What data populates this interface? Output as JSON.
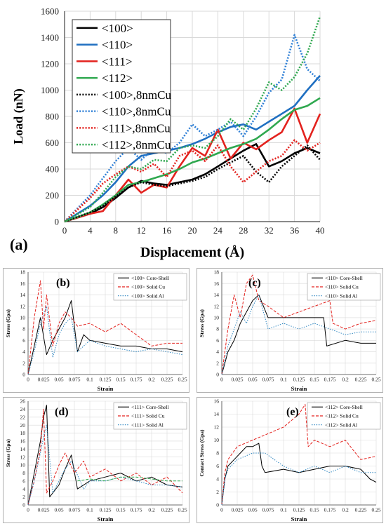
{
  "chart_data": [
    {
      "type": "line",
      "panel_label": "(a)",
      "xlabel": "Displacement (Å)",
      "ylabel": "Load (nN)",
      "xlim": [
        0,
        40
      ],
      "ylim": [
        0,
        1600
      ],
      "xticks": [
        "0",
        "4",
        "8",
        "12",
        "16",
        "20",
        "24",
        "28",
        "32",
        "36",
        "40"
      ],
      "yticks": [
        "0",
        "200",
        "400",
        "600",
        "800",
        "1000",
        "1200",
        "1400",
        "1600"
      ],
      "grid": true,
      "legend_position": "top-left",
      "series": [
        {
          "name": "<100>",
          "color": "#000000",
          "dash": "solid",
          "x": [
            0,
            4,
            6,
            8,
            10,
            12,
            14,
            16,
            18,
            20,
            22,
            24,
            26,
            28,
            30,
            32,
            34,
            36,
            38,
            40
          ],
          "y": [
            0,
            60,
            110,
            180,
            260,
            310,
            290,
            280,
            300,
            320,
            360,
            420,
            480,
            540,
            590,
            420,
            460,
            520,
            560,
            520
          ]
        },
        {
          "name": "<110>",
          "color": "#1f6fc1",
          "dash": "solid",
          "x": [
            0,
            4,
            6,
            8,
            10,
            12,
            14,
            16,
            18,
            20,
            22,
            24,
            26,
            28,
            30,
            32,
            34,
            36,
            38,
            40
          ],
          "y": [
            0,
            120,
            200,
            300,
            420,
            500,
            520,
            540,
            560,
            590,
            630,
            680,
            720,
            740,
            700,
            760,
            820,
            880,
            1000,
            1110
          ]
        },
        {
          "name": "<111>",
          "color": "#e3221e",
          "dash": "solid",
          "x": [
            0,
            4,
            6,
            8,
            10,
            12,
            14,
            16,
            18,
            20,
            22,
            24,
            26,
            28,
            30,
            32,
            34,
            36,
            38,
            40
          ],
          "y": [
            0,
            60,
            80,
            200,
            320,
            220,
            280,
            260,
            420,
            560,
            500,
            700,
            480,
            600,
            550,
            620,
            680,
            860,
            600,
            820
          ]
        },
        {
          "name": "<112>",
          "color": "#2fa84f",
          "dash": "solid",
          "x": [
            0,
            4,
            6,
            8,
            10,
            12,
            14,
            16,
            18,
            20,
            22,
            24,
            26,
            28,
            30,
            32,
            34,
            36,
            38,
            40
          ],
          "y": [
            0,
            70,
            130,
            200,
            280,
            300,
            330,
            360,
            400,
            450,
            480,
            520,
            560,
            590,
            630,
            700,
            780,
            850,
            880,
            940
          ]
        },
        {
          "name": "<100>,8nmCu",
          "color": "#000000",
          "dash": "dot",
          "x": [
            0,
            4,
            6,
            8,
            10,
            12,
            14,
            16,
            18,
            20,
            22,
            24,
            26,
            28,
            30,
            32,
            34,
            36,
            38,
            40
          ],
          "y": [
            0,
            70,
            120,
            190,
            260,
            300,
            280,
            270,
            290,
            310,
            340,
            400,
            450,
            500,
            380,
            300,
            420,
            500,
            580,
            470
          ]
        },
        {
          "name": "<110>,8nmCu",
          "color": "#2e7fd6",
          "dash": "dot",
          "x": [
            0,
            4,
            6,
            8,
            10,
            12,
            14,
            16,
            18,
            20,
            22,
            24,
            26,
            28,
            30,
            32,
            34,
            36,
            38,
            40
          ],
          "y": [
            0,
            200,
            330,
            460,
            560,
            470,
            560,
            520,
            600,
            740,
            650,
            700,
            760,
            650,
            800,
            980,
            1080,
            1420,
            1160,
            1070
          ]
        },
        {
          "name": "<111>,8nmCu",
          "color": "#e3221e",
          "dash": "dot",
          "x": [
            0,
            4,
            6,
            8,
            10,
            12,
            14,
            16,
            18,
            20,
            22,
            24,
            26,
            28,
            30,
            32,
            34,
            36,
            38,
            40
          ],
          "y": [
            0,
            180,
            290,
            360,
            420,
            380,
            440,
            340,
            500,
            540,
            460,
            580,
            420,
            300,
            380,
            460,
            500,
            620,
            540,
            600
          ]
        },
        {
          "name": "<112>,8nmCu",
          "color": "#2fa84f",
          "dash": "dot",
          "x": [
            0,
            4,
            6,
            8,
            10,
            12,
            14,
            16,
            18,
            20,
            22,
            24,
            26,
            28,
            30,
            32,
            34,
            36,
            38,
            40
          ],
          "y": [
            0,
            110,
            220,
            340,
            420,
            400,
            470,
            460,
            560,
            580,
            560,
            650,
            780,
            700,
            860,
            1060,
            1000,
            1100,
            1280,
            1560
          ]
        }
      ]
    },
    {
      "type": "line",
      "panel_label": "(b)",
      "xlabel": "Strain",
      "ylabel": "Stress (Gpa)",
      "xlim": [
        0,
        0.25
      ],
      "ylim": [
        0,
        18
      ],
      "xticks": [
        "0",
        "0.025",
        "0.05",
        "0.075",
        "0.1",
        "0.125",
        "0.15",
        "0.175",
        "0.2",
        "0.225",
        "0.25"
      ],
      "yticks": [
        "0",
        "2",
        "4",
        "6",
        "8",
        "10",
        "12",
        "14",
        "16",
        "18"
      ],
      "grid": true,
      "legend_position": "top-right",
      "series": [
        {
          "name": "<100> Core-Shell",
          "color": "#000000",
          "dash": "solid",
          "x": [
            0,
            0.01,
            0.02,
            0.03,
            0.04,
            0.05,
            0.06,
            0.07,
            0.08,
            0.09,
            0.1,
            0.125,
            0.15,
            0.175,
            0.2,
            0.225,
            0.25
          ],
          "y": [
            0,
            5,
            10,
            3.5,
            6,
            8,
            10,
            13,
            4,
            7,
            6,
            5.5,
            5,
            5,
            4.5,
            4.5,
            4
          ]
        },
        {
          "name": "<100> Solid Cu",
          "color": "#e3221e",
          "dash": "dash",
          "x": [
            0,
            0.01,
            0.02,
            0.025,
            0.03,
            0.04,
            0.05,
            0.06,
            0.07,
            0.08,
            0.1,
            0.125,
            0.15,
            0.175,
            0.2,
            0.225,
            0.25
          ],
          "y": [
            0,
            10,
            16.5,
            8,
            14,
            5,
            9,
            11,
            10,
            8.5,
            9,
            7.5,
            9,
            7,
            5,
            5.5,
            5.5
          ]
        },
        {
          "name": "<100> Solid Al",
          "color": "#2e86c1",
          "dash": "dot",
          "x": [
            0,
            0.01,
            0.02,
            0.03,
            0.04,
            0.05,
            0.06,
            0.07,
            0.08,
            0.1,
            0.125,
            0.15,
            0.175,
            0.2,
            0.225,
            0.25
          ],
          "y": [
            0,
            4,
            9,
            12,
            3,
            7,
            9,
            10,
            4,
            6,
            5,
            4.5,
            4,
            4.5,
            4,
            3.5
          ]
        }
      ]
    },
    {
      "type": "line",
      "panel_label": "(c)",
      "xlabel": "Strain",
      "ylabel": "Stress (Gpa)",
      "xlim": [
        0,
        0.25
      ],
      "ylim": [
        0,
        18
      ],
      "xticks": [
        "0",
        "0.025",
        "0.05",
        "0.075",
        "0.1",
        "0.125",
        "0.15",
        "0.175",
        "0.2",
        "0.225",
        "0.25"
      ],
      "yticks": [
        "0",
        "2",
        "4",
        "6",
        "8",
        "10",
        "12",
        "14",
        "16",
        "18"
      ],
      "grid": true,
      "legend_position": "top-right",
      "series": [
        {
          "name": "<110> Core-Shell",
          "color": "#000000",
          "dash": "solid",
          "x": [
            0,
            0.01,
            0.02,
            0.03,
            0.04,
            0.05,
            0.06,
            0.075,
            0.1,
            0.125,
            0.15,
            0.165,
            0.17,
            0.2,
            0.225,
            0.25
          ],
          "y": [
            0,
            4,
            6,
            9,
            11,
            13,
            14,
            10,
            10,
            10,
            10,
            10,
            5,
            6,
            5.5,
            5.5
          ]
        },
        {
          "name": "<110> Solid Cu",
          "color": "#e3221e",
          "dash": "dash",
          "x": [
            0,
            0.01,
            0.02,
            0.03,
            0.04,
            0.05,
            0.06,
            0.075,
            0.1,
            0.125,
            0.15,
            0.175,
            0.18,
            0.2,
            0.225,
            0.25
          ],
          "y": [
            0,
            8,
            14,
            10,
            16,
            17.5,
            13,
            12,
            10,
            11,
            12,
            13,
            9,
            8,
            9,
            9.5
          ]
        },
        {
          "name": "<110> Solid Al",
          "color": "#2e86c1",
          "dash": "dot",
          "x": [
            0,
            0.01,
            0.02,
            0.03,
            0.04,
            0.05,
            0.06,
            0.075,
            0.1,
            0.125,
            0.15,
            0.175,
            0.2,
            0.225,
            0.25
          ],
          "y": [
            0,
            5,
            8,
            11,
            9,
            12,
            14,
            8,
            9,
            8,
            9,
            8,
            7,
            7.5,
            7.5
          ]
        }
      ]
    },
    {
      "type": "line",
      "panel_label": "(d)",
      "xlabel": "Strain",
      "ylabel": "Stress (Gpa)",
      "xlim": [
        0,
        0.25
      ],
      "ylim": [
        0,
        26
      ],
      "xticks": [
        "0",
        "0.025",
        "0.05",
        "0.075",
        "0.1",
        "0.125",
        "0.15",
        "0.175",
        "0.2",
        "0.225",
        "0.25"
      ],
      "yticks": [
        "0",
        "2",
        "4",
        "6",
        "8",
        "10",
        "12",
        "14",
        "16",
        "18",
        "20",
        "22",
        "24",
        "26"
      ],
      "grid": true,
      "legend_position": "top-right",
      "series": [
        {
          "name": "<111> Core-Shell",
          "color": "#000000",
          "dash": "solid",
          "x": [
            0,
            0.01,
            0.02,
            0.025,
            0.03,
            0.035,
            0.05,
            0.06,
            0.07,
            0.08,
            0.1,
            0.125,
            0.15,
            0.175,
            0.2,
            0.225,
            0.25
          ],
          "y": [
            0,
            8,
            16,
            22,
            25,
            2,
            5,
            9,
            12.5,
            4,
            6,
            7,
            8,
            6,
            7,
            5,
            4.5
          ]
        },
        {
          "name": "<111> Solid Cu",
          "color": "#e3221e",
          "dash": "dash",
          "x": [
            0,
            0.01,
            0.02,
            0.025,
            0.03,
            0.04,
            0.05,
            0.06,
            0.075,
            0.09,
            0.1,
            0.125,
            0.15,
            0.175,
            0.2,
            0.225,
            0.25
          ],
          "y": [
            0,
            6,
            14,
            24,
            3,
            6,
            10,
            13,
            8,
            11,
            7,
            9,
            6,
            8,
            5,
            7,
            3
          ]
        },
        {
          "name": "<111> Solid Al",
          "color": "#2e86c1",
          "dash": "dot",
          "x": [
            0,
            0.01,
            0.02,
            0.025,
            0.03,
            0.04,
            0.05,
            0.06,
            0.07,
            0.09,
            0.1,
            0.125,
            0.15,
            0.175,
            0.2,
            0.225,
            0.25
          ],
          "y": [
            0,
            6,
            13,
            17,
            20,
            3,
            6,
            9,
            11,
            4,
            6,
            6,
            7,
            6,
            5,
            5,
            4.5
          ]
        },
        {
          "name": "",
          "color": "#2fa84f",
          "dash": "dash",
          "x": [
            0.08,
            0.1,
            0.125,
            0.15,
            0.175,
            0.2,
            0.225,
            0.25
          ],
          "y": [
            6,
            6.5,
            6,
            7,
            7,
            6.5,
            6,
            6
          ]
        }
      ]
    },
    {
      "type": "line",
      "panel_label": "(e)",
      "xlabel": "Strain",
      "ylabel": "Contact Stress (Gpa)",
      "xlim": [
        0,
        0.25
      ],
      "ylim": [
        0,
        16
      ],
      "xticks": [
        "0",
        "0.025",
        "0.05",
        "0.075",
        "0.1",
        "0.125",
        "0.15",
        "0.175",
        "0.2",
        "0.225",
        "0.25"
      ],
      "yticks": [
        "0",
        "2",
        "4",
        "6",
        "8",
        "10",
        "12",
        "14",
        "16"
      ],
      "grid": true,
      "legend_position": "top-right",
      "series": [
        {
          "name": "<112> Core-Shell",
          "color": "#000000",
          "dash": "solid",
          "x": [
            0,
            0.005,
            0.01,
            0.02,
            0.03,
            0.04,
            0.05,
            0.06,
            0.065,
            0.07,
            0.1,
            0.125,
            0.15,
            0.175,
            0.2,
            0.225,
            0.24,
            0.25
          ],
          "y": [
            0,
            4,
            6,
            7,
            8,
            9,
            9,
            9.5,
            6,
            5,
            5.5,
            5,
            5.5,
            6,
            6,
            5.5,
            4,
            3.5
          ]
        },
        {
          "name": "<112> Solid Cu",
          "color": "#e3221e",
          "dash": "dash",
          "x": [
            0,
            0.005,
            0.01,
            0.025,
            0.05,
            0.075,
            0.1,
            0.125,
            0.135,
            0.14,
            0.15,
            0.175,
            0.2,
            0.225,
            0.25
          ],
          "y": [
            0,
            5,
            7,
            9,
            10,
            11,
            12,
            14,
            15.5,
            9,
            10,
            9,
            10,
            7,
            7.5
          ]
        },
        {
          "name": "<112> Solid Al",
          "color": "#2e86c1",
          "dash": "dot",
          "x": [
            0,
            0.005,
            0.01,
            0.025,
            0.05,
            0.07,
            0.1,
            0.125,
            0.15,
            0.175,
            0.2,
            0.225,
            0.25
          ],
          "y": [
            0,
            4,
            5.5,
            7,
            8,
            8,
            6,
            5,
            6,
            5,
            6,
            5,
            5
          ]
        }
      ]
    }
  ]
}
